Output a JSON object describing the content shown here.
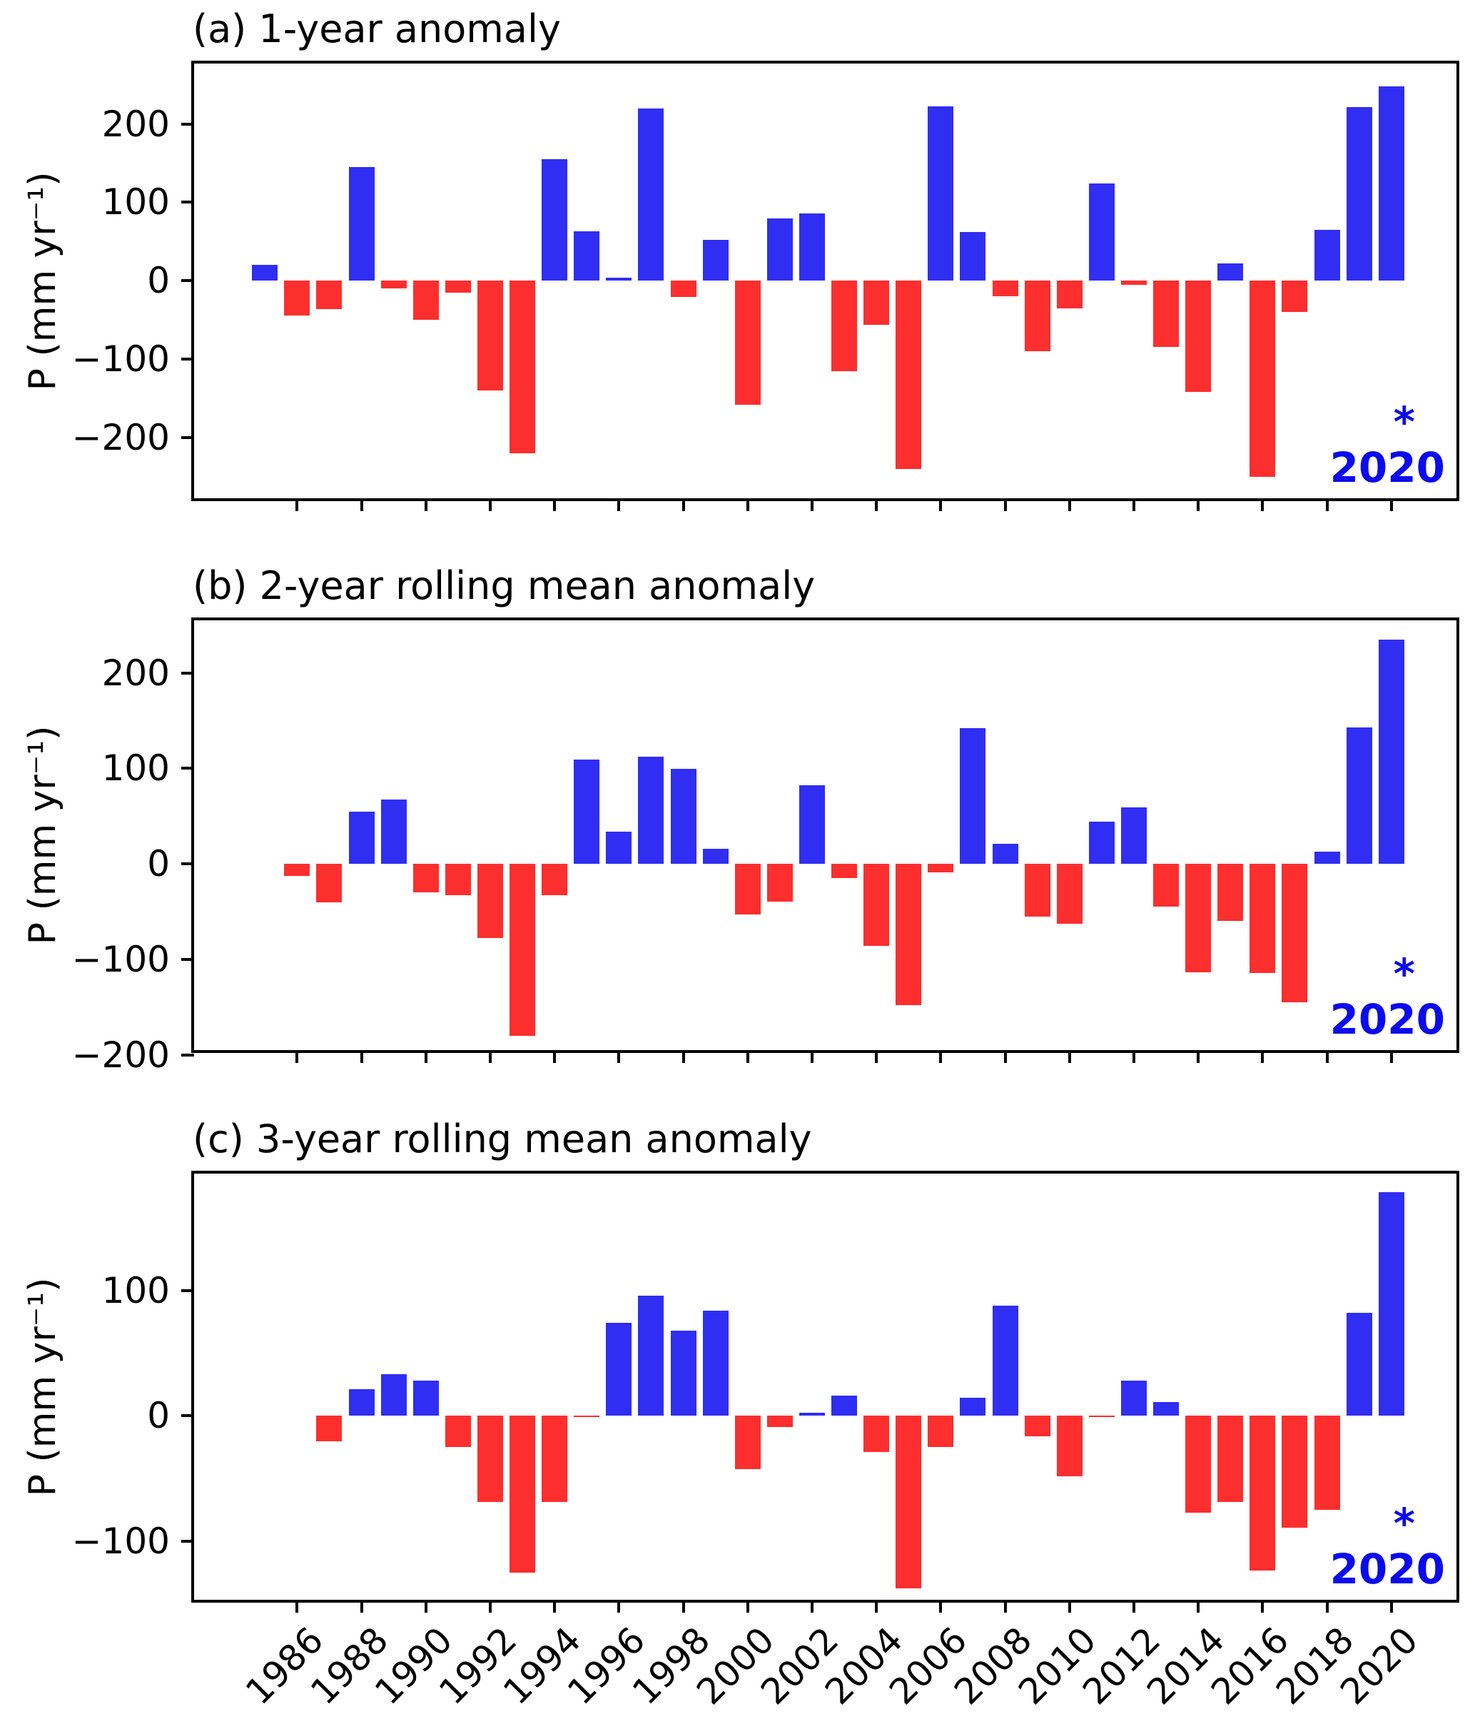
{
  "figure": {
    "y_axis_label": "P (mm yr⁻¹)",
    "colors": {
      "positive_bar": "#2f2ef2",
      "negative_bar": "#fd2e2e",
      "annotation": "#0b0bee",
      "axis": "#000000",
      "background": "#ffffff"
    }
  },
  "chart_data": [
    {
      "type": "bar",
      "panel": "a",
      "title": "(a) 1-year anomaly",
      "ylabel": "P (mm yr⁻¹)",
      "xlabel": "",
      "x": [
        1985,
        1986,
        1987,
        1988,
        1989,
        1990,
        1991,
        1992,
        1993,
        1994,
        1995,
        1996,
        1997,
        1998,
        1999,
        2000,
        2001,
        2002,
        2003,
        2004,
        2005,
        2006,
        2007,
        2008,
        2009,
        2010,
        2011,
        2012,
        2013,
        2014,
        2015,
        2016,
        2017,
        2018,
        2019,
        2020
      ],
      "values": [
        20,
        -45,
        -36,
        145,
        -10,
        -50,
        -15,
        -140,
        -220,
        155,
        63,
        4,
        220,
        -21,
        52,
        -158,
        79,
        86,
        -116,
        -56,
        -240,
        222,
        62,
        -20,
        -90,
        -35,
        124,
        -5,
        -85,
        -142,
        22,
        -250,
        -40,
        65,
        221,
        248
      ],
      "ylim": [
        -285,
        277
      ],
      "yticks": [
        200,
        100,
        0,
        -100,
        -200
      ],
      "xlim": [
        1982.8,
        2022.2
      ],
      "xticks": [
        1986,
        1988,
        1990,
        1992,
        1994,
        1996,
        1998,
        2000,
        2002,
        2004,
        2006,
        2008,
        2010,
        2012,
        2014,
        2016,
        2018,
        2020
      ],
      "show_xtick_labels": false,
      "grid": false,
      "legend": "none",
      "bar_color_rule": "blue if positive, red if negative",
      "annotation": {
        "symbol": "*",
        "label": "2020"
      }
    },
    {
      "type": "bar",
      "panel": "b",
      "title": "(b) 2-year rolling mean anomaly",
      "ylabel": "P (mm yr⁻¹)",
      "xlabel": "",
      "x": [
        1986,
        1987,
        1988,
        1989,
        1990,
        1991,
        1992,
        1993,
        1994,
        1995,
        1996,
        1997,
        1998,
        1999,
        2000,
        2001,
        2002,
        2003,
        2004,
        2005,
        2006,
        2007,
        2008,
        2009,
        2010,
        2011,
        2012,
        2013,
        2014,
        2015,
        2016,
        2017,
        2018,
        2019,
        2020
      ],
      "values": [
        -12.5,
        -40.5,
        54.5,
        67.5,
        -30,
        -32.5,
        -77.5,
        -180,
        -32.5,
        109,
        33.5,
        112,
        99.5,
        15.5,
        -53,
        -39.5,
        82.5,
        -15,
        -86,
        -148,
        -9,
        142,
        21,
        -55,
        -62.5,
        44.5,
        59.5,
        -45,
        -113.5,
        -60,
        -114,
        -145,
        12.5,
        143,
        234.5
      ],
      "ylim": [
        -201,
        255
      ],
      "yticks": [
        200,
        100,
        0,
        -100,
        -200
      ],
      "xlim": [
        1982.8,
        2022.2
      ],
      "xticks": [
        1986,
        1988,
        1990,
        1992,
        1994,
        1996,
        1998,
        2000,
        2002,
        2004,
        2006,
        2008,
        2010,
        2012,
        2014,
        2016,
        2018,
        2020
      ],
      "show_xtick_labels": false,
      "grid": false,
      "legend": "none",
      "bar_color_rule": "blue if positive, red if negative",
      "annotation": {
        "symbol": "*",
        "label": "2020"
      }
    },
    {
      "type": "bar",
      "panel": "c",
      "title": "(c) 3-year rolling mean anomaly",
      "ylabel": "P (mm yr⁻¹)",
      "xlabel": "",
      "x": [
        1987,
        1988,
        1989,
        1990,
        1991,
        1992,
        1993,
        1994,
        1995,
        1996,
        1997,
        1998,
        1999,
        2000,
        2001,
        2002,
        2003,
        2004,
        2005,
        2006,
        2007,
        2008,
        2009,
        2010,
        2011,
        2012,
        2013,
        2014,
        2015,
        2016,
        2017,
        2018,
        2019,
        2020
      ],
      "values": [
        -20.3,
        21.3,
        33,
        28.3,
        -25,
        -68.3,
        -125,
        -68.3,
        -0.7,
        74,
        95.7,
        67.7,
        83.7,
        -42.3,
        -9,
        2.3,
        16.3,
        -28.7,
        -137.3,
        -24.7,
        14.7,
        88,
        -16,
        -48.3,
        -0.3,
        28,
        11.3,
        -77.3,
        -68.3,
        -123.3,
        -89.3,
        -75,
        82,
        178
      ],
      "ylim": [
        -151,
        193
      ],
      "yticks": [
        100,
        0,
        -100
      ],
      "xlim": [
        1982.8,
        2022.2
      ],
      "xticks": [
        1986,
        1988,
        1990,
        1992,
        1994,
        1996,
        1998,
        2000,
        2002,
        2004,
        2006,
        2008,
        2010,
        2012,
        2014,
        2016,
        2018,
        2020
      ],
      "show_xtick_labels": true,
      "xtick_labels": [
        "1986",
        "1988",
        "1990",
        "1992",
        "1994",
        "1996",
        "1998",
        "2000",
        "2002",
        "2004",
        "2006",
        "2008",
        "2010",
        "2012",
        "2014",
        "2016",
        "2018",
        "2020"
      ],
      "grid": false,
      "legend": "none",
      "bar_color_rule": "blue if positive, red if negative",
      "annotation": {
        "symbol": "*",
        "label": "2020"
      }
    }
  ]
}
